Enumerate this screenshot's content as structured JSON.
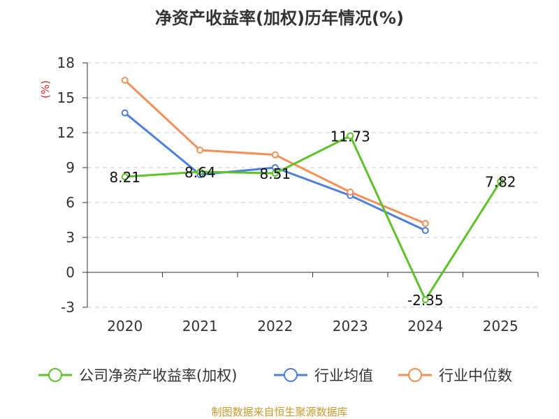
{
  "chart_data": {
    "type": "line",
    "title": "净资产收益率(加权)历年情况(%)",
    "ylabel": "(%)",
    "categories": [
      "2020",
      "2021",
      "2022",
      "2023",
      "2024",
      "2025"
    ],
    "ylim": [
      -3,
      18
    ],
    "yticks": [
      18,
      15,
      12,
      9,
      6,
      3,
      0,
      -3
    ],
    "grid": true,
    "legend_position": "bottom",
    "series": [
      {
        "name": "公司净资产收益率(加权)",
        "color": "#5ec22b",
        "values": [
          8.21,
          8.64,
          8.51,
          11.73,
          -2.35,
          7.82
        ],
        "data_labels": [
          "8.21",
          "8.64",
          "8.51",
          "11.73",
          "-2.35",
          "7.82"
        ]
      },
      {
        "name": "行业均值",
        "color": "#4f7fdc",
        "values": [
          13.7,
          8.4,
          9.0,
          6.6,
          3.6,
          null
        ]
      },
      {
        "name": "行业中位数",
        "color": "#f39059",
        "values": [
          16.5,
          10.5,
          10.1,
          6.9,
          4.2,
          null
        ]
      }
    ],
    "source": "制图数据来自恒生聚源数据库"
  }
}
